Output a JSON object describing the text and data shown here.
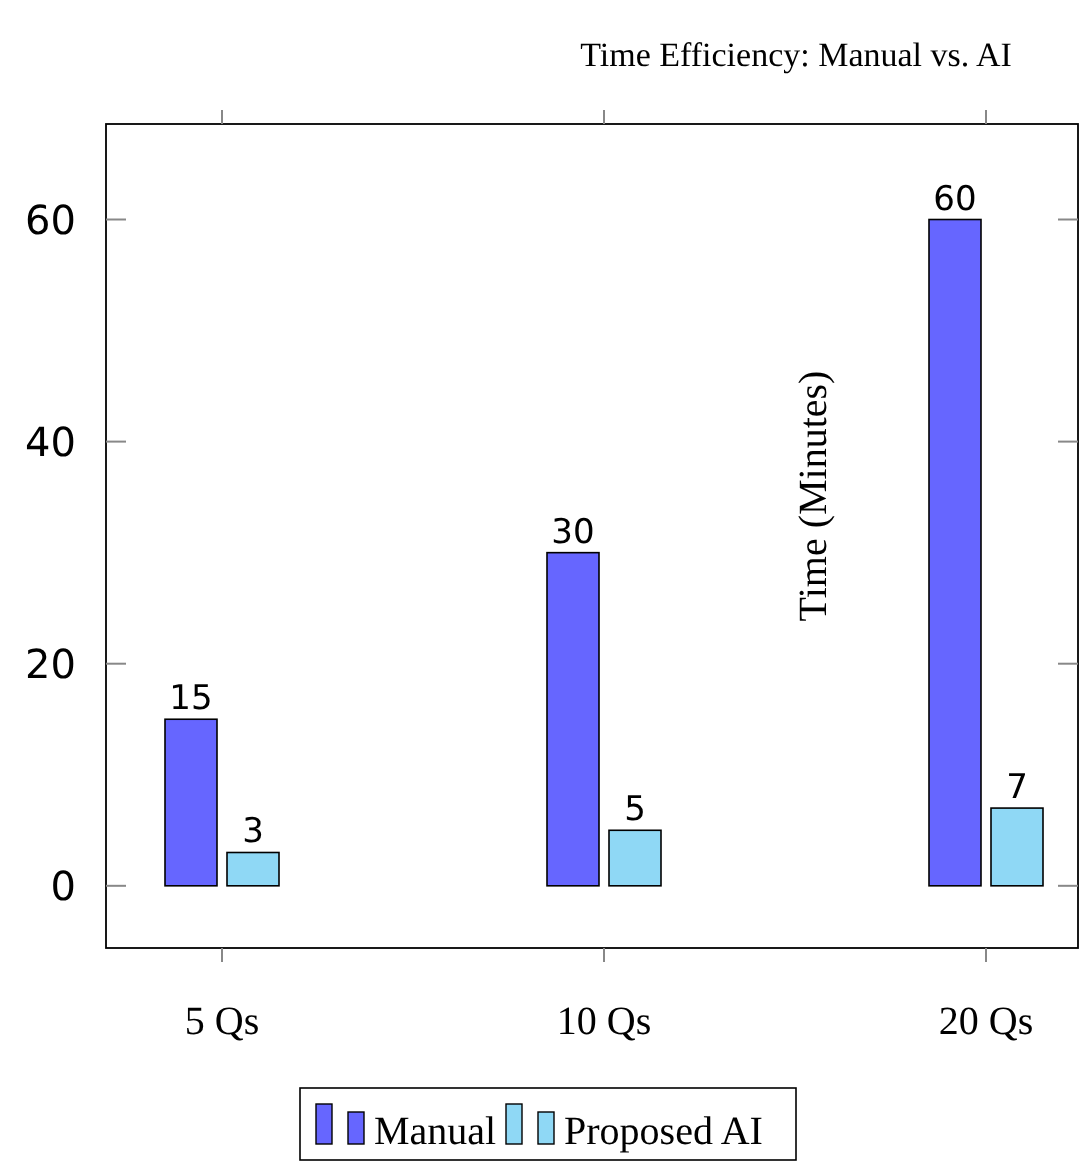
{
  "chart_data": {
    "type": "bar",
    "title": "Time Efficiency: Manual vs. AI",
    "ylabel": "Time (Minutes)",
    "categories": [
      "5 Qs",
      "10 Qs",
      "20 Qs"
    ],
    "series": [
      {
        "name": "Manual",
        "color": "#6666ff",
        "values": [
          15,
          30,
          60
        ]
      },
      {
        "name": "Proposed AI",
        "color": "#8fd8f5",
        "values": [
          3,
          5,
          7
        ]
      }
    ],
    "ylim": [
      -5.6,
      68.6
    ],
    "yticks": [
      0,
      20,
      40,
      60
    ],
    "data_labels": true,
    "legend": "bottom",
    "grid": false
  }
}
